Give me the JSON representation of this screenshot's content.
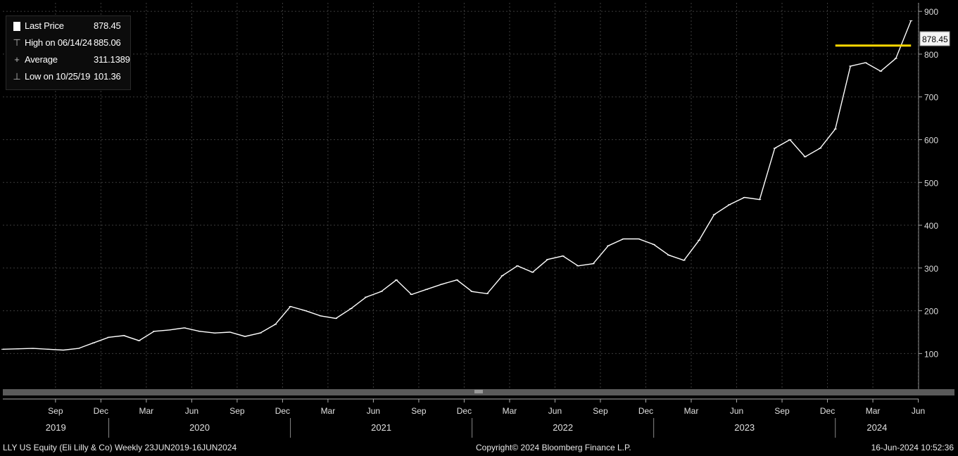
{
  "legend": {
    "last_price_label": "Last Price",
    "last_price_value": "878.45",
    "high_label": "High on 06/14/24",
    "high_value": "885.06",
    "average_label": "Average",
    "average_value": "311.1389",
    "low_label": "Low on 10/25/19",
    "low_value": "101.36"
  },
  "last_price_tag": "878.45",
  "footer": {
    "security": "LLY US Equity (Eli Lilly & Co)  Weekly 23JUN2019-16JUN2024",
    "copyright": "Copyright© 2024 Bloomberg Finance L.P.",
    "timestamp": "16-Jun-2024 10:52:36"
  },
  "colors": {
    "background": "#000000",
    "price_line": "#ffffff",
    "marker_line": "#ffd800",
    "grid": "#3c3c3c"
  },
  "chart_data": {
    "type": "line",
    "title": "",
    "xlabel": "",
    "ylabel": "",
    "ylim": [
      20,
      920
    ],
    "y_ticks": [
      100,
      200,
      300,
      400,
      500,
      600,
      700,
      800,
      900
    ],
    "y_tick_labels": [
      "100",
      "200",
      "300",
      "400",
      "500",
      "600",
      "700",
      "800",
      "900"
    ],
    "x_month_ticks": [
      "Sep",
      "Dec",
      "Mar",
      "Jun",
      "Sep",
      "Dec",
      "Mar",
      "Jun",
      "Sep",
      "Dec",
      "Mar",
      "Jun",
      "Sep",
      "Dec",
      "Mar",
      "Jun",
      "Sep",
      "Dec",
      "Mar",
      "Jun"
    ],
    "x_year_labels": [
      "2019",
      "2020",
      "2021",
      "2022",
      "2023",
      "2024"
    ],
    "grid": true,
    "legend_position": "top-left",
    "series": [
      {
        "name": "Last Price",
        "x": [
          "2019-06",
          "2019-07",
          "2019-08",
          "2019-09",
          "2019-10",
          "2019-11",
          "2019-12",
          "2020-01",
          "2020-02",
          "2020-03",
          "2020-04",
          "2020-05",
          "2020-06",
          "2020-07",
          "2020-08",
          "2020-09",
          "2020-10",
          "2020-11",
          "2020-12",
          "2021-01",
          "2021-02",
          "2021-03",
          "2021-04",
          "2021-05",
          "2021-06",
          "2021-07",
          "2021-08",
          "2021-09",
          "2021-10",
          "2021-11",
          "2021-12",
          "2022-01",
          "2022-02",
          "2022-03",
          "2022-04",
          "2022-05",
          "2022-06",
          "2022-07",
          "2022-08",
          "2022-09",
          "2022-10",
          "2022-11",
          "2022-12",
          "2023-01",
          "2023-02",
          "2023-03",
          "2023-04",
          "2023-05",
          "2023-06",
          "2023-07",
          "2023-08",
          "2023-09",
          "2023-10",
          "2023-11",
          "2023-12",
          "2024-01",
          "2024-02",
          "2024-03",
          "2024-04",
          "2024-05",
          "2024-06"
        ],
        "values": [
          110,
          111,
          112,
          110,
          108,
          112,
          125,
          138,
          142,
          130,
          152,
          155,
          160,
          152,
          148,
          150,
          140,
          148,
          168,
          210,
          200,
          188,
          182,
          205,
          232,
          245,
          272,
          238,
          250,
          262,
          272,
          245,
          240,
          282,
          305,
          290,
          320,
          328,
          305,
          310,
          352,
          368,
          368,
          355,
          330,
          318,
          365,
          425,
          448,
          465,
          460,
          580,
          600,
          560,
          580,
          625,
          772,
          780,
          760,
          790,
          878
        ]
      }
    ],
    "reference_lines": [
      {
        "y": 820,
        "x_start": "2024-01",
        "x_end": "2024-06",
        "color": "#ffd800"
      }
    ]
  }
}
